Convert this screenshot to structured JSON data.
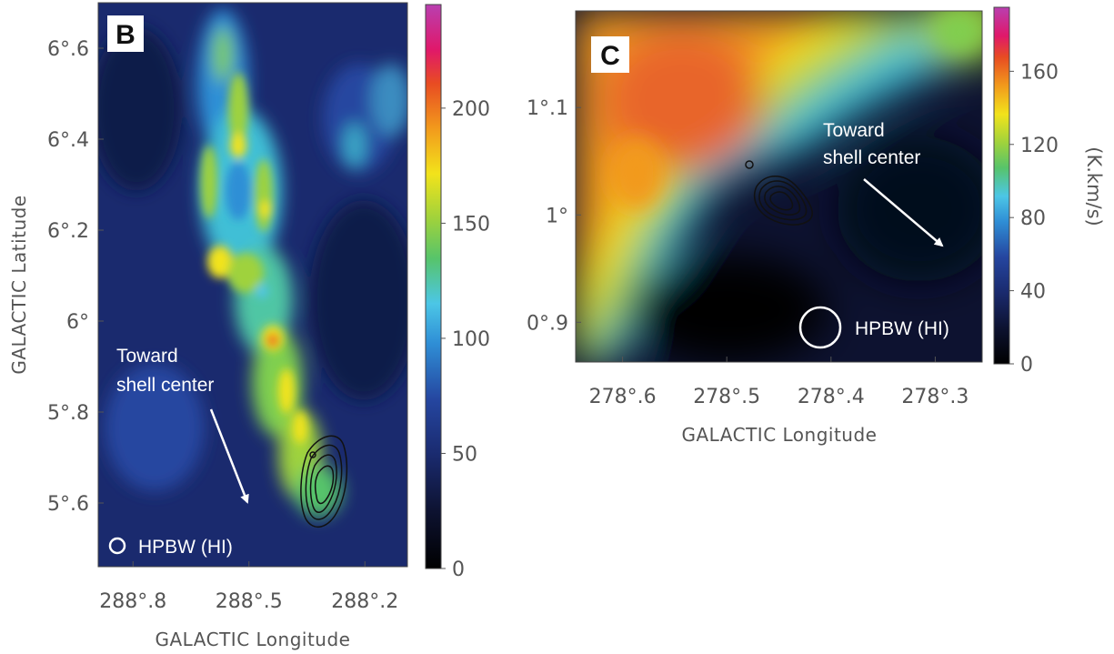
{
  "chart_data": [
    {
      "type": "heatmap",
      "panel": "B",
      "xlabel": "GALACTIC  Longitude",
      "ylabel": "GALACTIC  Latitude",
      "x_ticks": [
        {
          "value": 288.8,
          "label": "288°.8"
        },
        {
          "value": 288.5,
          "label": "288°.5"
        },
        {
          "value": 288.2,
          "label": "288°.2"
        }
      ],
      "y_ticks": [
        {
          "value": 6.6,
          "label": "6°.6"
        },
        {
          "value": 6.4,
          "label": "6°.4"
        },
        {
          "value": 6.2,
          "label": "6°.2"
        },
        {
          "value": 6.0,
          "label": "6°"
        },
        {
          "value": 5.8,
          "label": "5°.8"
        },
        {
          "value": 5.6,
          "label": "5°.6"
        }
      ],
      "xlim": [
        288.89,
        288.09
      ],
      "ylim": [
        5.46,
        6.7
      ],
      "colorbar": {
        "ticks": [
          "0",
          "50",
          "100",
          "150",
          "200"
        ],
        "tick_values": [
          0,
          50,
          100,
          150,
          200
        ],
        "range": [
          0,
          245
        ]
      },
      "annotation": {
        "line1": "Toward",
        "line2": "shell center"
      },
      "beam_label": "HPBW (HI)"
    },
    {
      "type": "heatmap",
      "panel": "C",
      "xlabel": "GALACTIC  Longitude",
      "unit_label": "(K.km/s)",
      "x_ticks": [
        {
          "value": 278.6,
          "label": "278°.6"
        },
        {
          "value": 278.5,
          "label": "278°.5"
        },
        {
          "value": 278.4,
          "label": "278°.4"
        },
        {
          "value": 278.3,
          "label": "278°.3"
        }
      ],
      "y_ticks": [
        {
          "value": 1.1,
          "label": "1°.1"
        },
        {
          "value": 1.0,
          "label": "1°"
        },
        {
          "value": 0.9,
          "label": "0°.9"
        }
      ],
      "xlim": [
        278.645,
        278.255
      ],
      "ylim": [
        0.863,
        1.19
      ],
      "colorbar": {
        "ticks": [
          "0",
          "40",
          "80",
          "120",
          "160"
        ],
        "tick_values": [
          0,
          40,
          80,
          120,
          160
        ],
        "range": [
          0,
          195
        ]
      },
      "annotation": {
        "line1": "Toward",
        "line2": "shell center"
      },
      "beam_label": "HPBW (HI)"
    }
  ]
}
